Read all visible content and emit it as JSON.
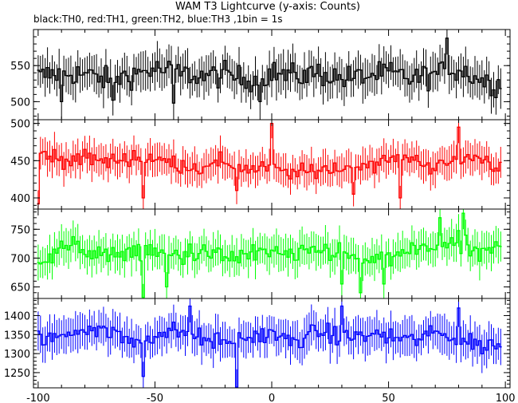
{
  "chart_data": {
    "type": "line",
    "title": "WAM T3 Lightcurve (y-axis: Counts)",
    "subtitle": "black:TH0, red:TH1, green:TH2, blue:TH3 ,1bin = 1s",
    "xlabel": "",
    "xlim": [
      -102,
      102
    ],
    "x_ticks": [
      -100,
      -50,
      0,
      50,
      100
    ],
    "x_tick_labels": [
      "-100",
      "-50",
      "0",
      "50",
      "100"
    ],
    "x_range": [
      -100,
      98
    ],
    "bin_seconds": 1,
    "grid": false,
    "legend": "none",
    "panels": [
      {
        "name": "TH0",
        "color": "#000000",
        "ylim": [
          475,
          600
        ],
        "y_ticks": [
          500,
          550
        ],
        "y_tick_labels": [
          "500",
          "550"
        ],
        "control_points": [
          [
            -100,
            535
          ],
          [
            -90,
            540
          ],
          [
            -80,
            538
          ],
          [
            -70,
            530
          ],
          [
            -60,
            538
          ],
          [
            -50,
            545
          ],
          [
            -40,
            540
          ],
          [
            -30,
            535
          ],
          [
            -20,
            538
          ],
          [
            -10,
            530
          ],
          [
            0,
            540
          ],
          [
            10,
            535
          ],
          [
            20,
            540
          ],
          [
            30,
            532
          ],
          [
            40,
            535
          ],
          [
            50,
            540
          ],
          [
            60,
            532
          ],
          [
            70,
            538
          ],
          [
            80,
            545
          ],
          [
            90,
            530
          ],
          [
            98,
            522
          ]
        ],
        "noise": 22,
        "error": 24,
        "outliers": [
          [
            -68,
            502
          ],
          [
            -42,
            498
          ],
          [
            -5,
            500
          ],
          [
            75,
            588
          ],
          [
            -90,
            500
          ]
        ]
      },
      {
        "name": "TH1",
        "color": "#ff0000",
        "ylim": [
          385,
          505
        ],
        "y_ticks": [
          400,
          450,
          500
        ],
        "y_tick_labels": [
          "400",
          "450",
          "500"
        ],
        "control_points": [
          [
            -100,
            462
          ],
          [
            -90,
            450
          ],
          [
            -80,
            455
          ],
          [
            -70,
            448
          ],
          [
            -60,
            455
          ],
          [
            -50,
            452
          ],
          [
            -40,
            445
          ],
          [
            -30,
            440
          ],
          [
            -20,
            448
          ],
          [
            -10,
            438
          ],
          [
            0,
            440
          ],
          [
            10,
            432
          ],
          [
            20,
            438
          ],
          [
            30,
            440
          ],
          [
            40,
            445
          ],
          [
            50,
            450
          ],
          [
            60,
            455
          ],
          [
            70,
            440
          ],
          [
            80,
            452
          ],
          [
            90,
            455
          ],
          [
            98,
            440
          ]
        ],
        "noise": 14,
        "error": 20,
        "outliers": [
          [
            -100,
            392
          ],
          [
            -55,
            400
          ],
          [
            -15,
            410
          ],
          [
            0,
            500
          ],
          [
            35,
            405
          ],
          [
            55,
            400
          ],
          [
            80,
            495
          ]
        ]
      },
      {
        "name": "TH2",
        "color": "#00ff00",
        "ylim": [
          630,
          785
        ],
        "y_ticks": [
          650,
          700,
          750
        ],
        "y_tick_labels": [
          "650",
          "700",
          "750"
        ],
        "control_points": [
          [
            -100,
            695
          ],
          [
            -90,
            720
          ],
          [
            -80,
            715
          ],
          [
            -70,
            700
          ],
          [
            -60,
            715
          ],
          [
            -50,
            708
          ],
          [
            -40,
            705
          ],
          [
            -30,
            712
          ],
          [
            -20,
            700
          ],
          [
            -10,
            705
          ],
          [
            0,
            712
          ],
          [
            10,
            700
          ],
          [
            20,
            715
          ],
          [
            30,
            710
          ],
          [
            40,
            690
          ],
          [
            50,
            700
          ],
          [
            60,
            712
          ],
          [
            70,
            720
          ],
          [
            80,
            725
          ],
          [
            90,
            705
          ],
          [
            98,
            720
          ]
        ],
        "noise": 22,
        "error": 28,
        "outliers": [
          [
            -55,
            632
          ],
          [
            -45,
            650
          ],
          [
            30,
            655
          ],
          [
            38,
            640
          ],
          [
            48,
            655
          ],
          [
            72,
            770
          ],
          [
            82,
            778
          ]
        ]
      },
      {
        "name": "TH3",
        "color": "#0000ff",
        "ylim": [
          1210,
          1445
        ],
        "y_ticks": [
          1250,
          1300,
          1350,
          1400
        ],
        "y_tick_labels": [
          "1250",
          "1300",
          "1350",
          "1400"
        ],
        "control_points": [
          [
            -100,
            1340
          ],
          [
            -90,
            1345
          ],
          [
            -80,
            1370
          ],
          [
            -70,
            1360
          ],
          [
            -60,
            1330
          ],
          [
            -50,
            1350
          ],
          [
            -40,
            1360
          ],
          [
            -30,
            1340
          ],
          [
            -20,
            1330
          ],
          [
            -10,
            1345
          ],
          [
            0,
            1350
          ],
          [
            10,
            1330
          ],
          [
            20,
            1360
          ],
          [
            30,
            1340
          ],
          [
            40,
            1350
          ],
          [
            50,
            1345
          ],
          [
            60,
            1335
          ],
          [
            70,
            1355
          ],
          [
            80,
            1340
          ],
          [
            90,
            1320
          ],
          [
            98,
            1330
          ]
        ],
        "noise": 30,
        "error": 45,
        "outliers": [
          [
            -55,
            1240
          ],
          [
            -15,
            1212
          ],
          [
            -35,
            1425
          ],
          [
            30,
            1425
          ],
          [
            80,
            1420
          ]
        ]
      }
    ]
  }
}
